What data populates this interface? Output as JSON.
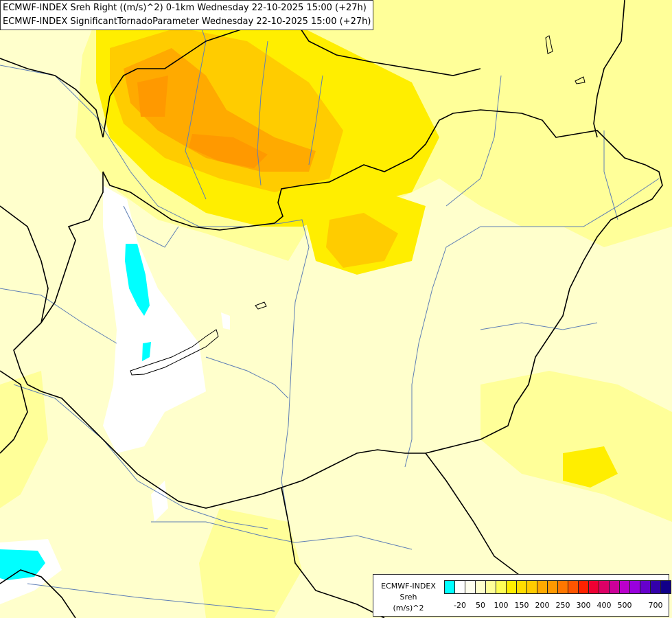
{
  "title": {
    "line1": "ECMWF-INDEX Sreh Right ((m/s)^2) 0-1km Wednesday 22-10-2025 15:00 (+27h)",
    "line2": "ECMWF-INDEX SignificantTornadoParameter Wednesday 22-10-2025 15:00 (+27h)"
  },
  "legend": {
    "line1": "ECMWF-INDEX",
    "line2": "Sreh",
    "line3": "(m/s)^2",
    "colors": [
      "#00ffff",
      "#ffffff",
      "#ffffee",
      "#ffffcc",
      "#ffff99",
      "#ffff55",
      "#ffee00",
      "#ffdd00",
      "#ffcc00",
      "#ffaa00",
      "#ff9900",
      "#ff7700",
      "#ff5500",
      "#ff2200",
      "#ee0033",
      "#dd0066",
      "#cc0099",
      "#bb00cc",
      "#9900dd",
      "#6600cc",
      "#3300aa",
      "#110088"
    ],
    "ticks": [
      "-20",
      "50",
      "100",
      "150",
      "200",
      "250",
      "300",
      "400",
      "500",
      "700"
    ]
  },
  "map": {
    "background_color": "#ffffcc",
    "border_color": "#000000",
    "river_color": "#5f7fb5"
  }
}
